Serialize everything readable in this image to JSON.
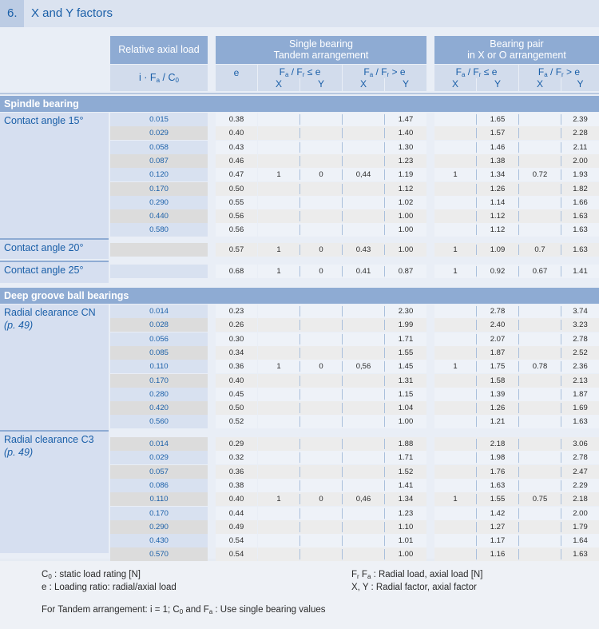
{
  "title": {
    "number": "6.",
    "text": "X and Y factors"
  },
  "header": {
    "relative_axial_load": "Relative axial load",
    "load_formula": "i · Fa / C0",
    "single_bearing_line1": "Single bearing",
    "single_bearing_line2": "Tandem arrangement",
    "pair_line1": "Bearing pair",
    "pair_line2": "in X or O arrangement",
    "e": "e",
    "cond_le": "Fa / Fr ≤ e",
    "cond_gt": "Fa / Fr > e",
    "x": "X",
    "y": "Y"
  },
  "sections": [
    {
      "title": "Spindle bearing",
      "groups": [
        {
          "label": "Contact angle  15°",
          "ref": "",
          "rows": [
            [
              "0.015",
              "0.38",
              "",
              "",
              "",
              "1.47",
              "",
              "1.65",
              "",
              "2.39"
            ],
            [
              "0.029",
              "0.40",
              "",
              "",
              "",
              "1.40",
              "",
              "1.57",
              "",
              "2.28"
            ],
            [
              "0.058",
              "0.43",
              "",
              "",
              "",
              "1.30",
              "",
              "1.46",
              "",
              "2.11"
            ],
            [
              "0.087",
              "0.46",
              "",
              "",
              "",
              "1.23",
              "",
              "1.38",
              "",
              "2.00"
            ],
            [
              "0.120",
              "0.47",
              "1",
              "0",
              "0,44",
              "1.19",
              "1",
              "1.34",
              "0.72",
              "1.93"
            ],
            [
              "0.170",
              "0.50",
              "",
              "",
              "",
              "1.12",
              "",
              "1.26",
              "",
              "1.82"
            ],
            [
              "0.290",
              "0.55",
              "",
              "",
              "",
              "1.02",
              "",
              "1.14",
              "",
              "1.66"
            ],
            [
              "0.440",
              "0.56",
              "",
              "",
              "",
              "1.00",
              "",
              "1.12",
              "",
              "1.63"
            ],
            [
              "0.580",
              "0.56",
              "",
              "",
              "",
              "1.00",
              "",
              "1.12",
              "",
              "1.63"
            ]
          ]
        },
        {
          "label": "Contact angle 20°",
          "ref": "",
          "rows": [
            [
              "",
              "0.57",
              "1",
              "0",
              "0.43",
              "1.00",
              "1",
              "1.09",
              "0.7",
              "1.63"
            ]
          ]
        },
        {
          "label": "Contact angle 25°",
          "ref": "",
          "rows": [
            [
              "",
              "0.68",
              "1",
              "0",
              "0.41",
              "0.87",
              "1",
              "0.92",
              "0.67",
              "1.41"
            ]
          ]
        }
      ]
    },
    {
      "title": "Deep groove ball bearings",
      "groups": [
        {
          "label": "Radial clearance CN",
          "ref": "(p. 49)",
          "rows": [
            [
              "0.014",
              "0.23",
              "",
              "",
              "",
              "2.30",
              "",
              "2.78",
              "",
              "3.74"
            ],
            [
              "0.028",
              "0.26",
              "",
              "",
              "",
              "1.99",
              "",
              "2.40",
              "",
              "3.23"
            ],
            [
              "0.056",
              "0.30",
              "",
              "",
              "",
              "1.71",
              "",
              "2.07",
              "",
              "2.78"
            ],
            [
              "0.085",
              "0.34",
              "",
              "",
              "",
              "1.55",
              "",
              "1.87",
              "",
              "2.52"
            ],
            [
              "0.110",
              "0.36",
              "1",
              "0",
              "0,56",
              "1.45",
              "1",
              "1.75",
              "0.78",
              "2.36"
            ],
            [
              "0.170",
              "0.40",
              "",
              "",
              "",
              "1.31",
              "",
              "1.58",
              "",
              "2.13"
            ],
            [
              "0.280",
              "0.45",
              "",
              "",
              "",
              "1.15",
              "",
              "1.39",
              "",
              "1.87"
            ],
            [
              "0.420",
              "0.50",
              "",
              "",
              "",
              "1.04",
              "",
              "1.26",
              "",
              "1.69"
            ],
            [
              "0.560",
              "0.52",
              "",
              "",
              "",
              "1.00",
              "",
              "1.21",
              "",
              "1.63"
            ]
          ]
        },
        {
          "label": "Radial clearance C3",
          "ref": "(p. 49)",
          "rows": [
            [
              "0.014",
              "0.29",
              "",
              "",
              "",
              "1.88",
              "",
              "2.18",
              "",
              "3.06"
            ],
            [
              "0.029",
              "0.32",
              "",
              "",
              "",
              "1.71",
              "",
              "1.98",
              "",
              "2.78"
            ],
            [
              "0.057",
              "0.36",
              "",
              "",
              "",
              "1.52",
              "",
              "1.76",
              "",
              "2.47"
            ],
            [
              "0.086",
              "0.38",
              "",
              "",
              "",
              "1.41",
              "",
              "1.63",
              "",
              "2.29"
            ],
            [
              "0.110",
              "0.40",
              "1",
              "0",
              "0,46",
              "1.34",
              "1",
              "1.55",
              "0.75",
              "2.18"
            ],
            [
              "0.170",
              "0.44",
              "",
              "",
              "",
              "1.23",
              "",
              "1.42",
              "",
              "2.00"
            ],
            [
              "0.290",
              "0.49",
              "",
              "",
              "",
              "1.10",
              "",
              "1.27",
              "",
              "1.79"
            ],
            [
              "0.430",
              "0.54",
              "",
              "",
              "",
              "1.01",
              "",
              "1.17",
              "",
              "1.64"
            ],
            [
              "0.570",
              "0.54",
              "",
              "",
              "",
              "1.00",
              "",
              "1.16",
              "",
              "1.63"
            ]
          ]
        }
      ]
    }
  ],
  "footer": {
    "c0": "C0 : static load rating [N]",
    "e": "e : Loading ratio: radial/axial load",
    "frfa": "Fr Fa : Radial load, axial load  [N]",
    "xy": "X, Y : Radial factor, axial factor",
    "tandem": "For Tandem arrangement: i = 1; C0 and Fa : Use single bearing values"
  }
}
